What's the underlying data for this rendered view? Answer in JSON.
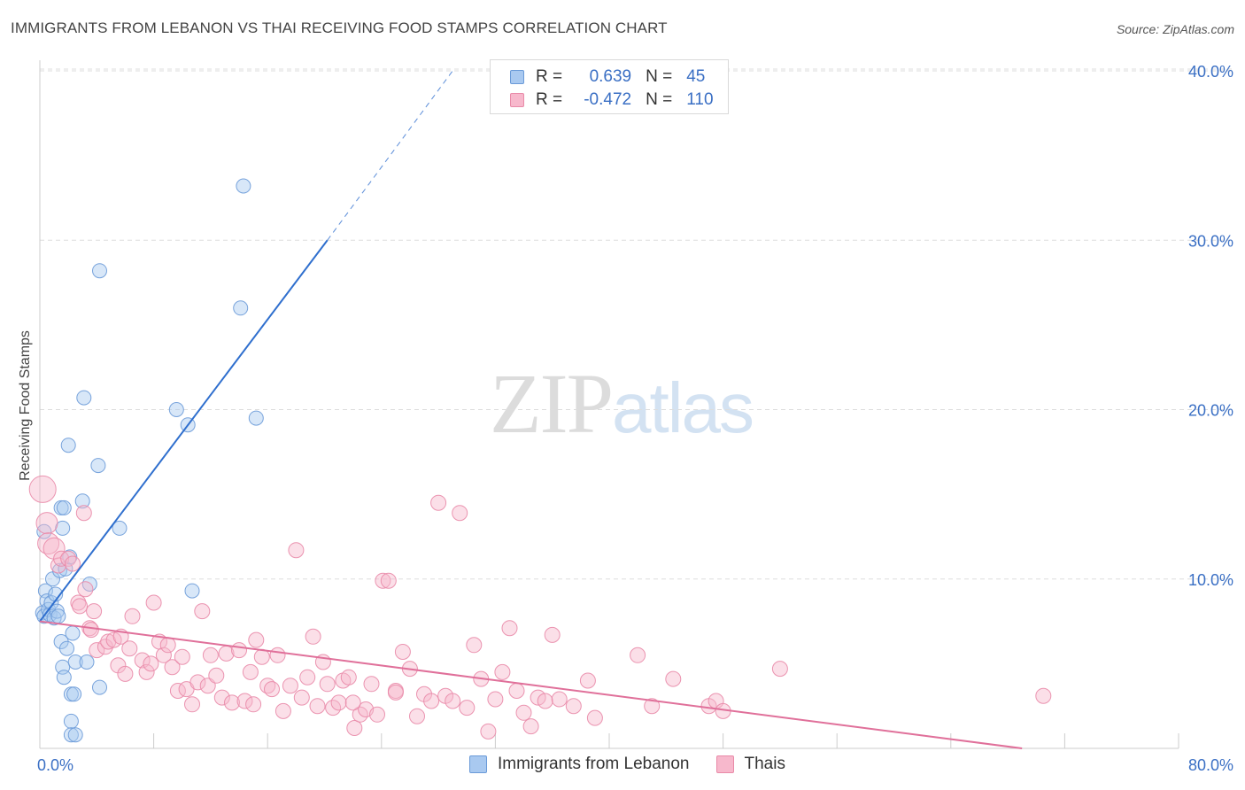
{
  "title": "IMMIGRANTS FROM LEBANON VS THAI RECEIVING FOOD STAMPS CORRELATION CHART",
  "source": "Source: ZipAtlas.com",
  "watermark": {
    "part1": "ZIP",
    "part2": "atlas"
  },
  "legend": {
    "rows": [
      {
        "r_label": "R =",
        "r_value": "0.639",
        "n_label": "N =",
        "n_value": "45",
        "color": "#a9c9f0",
        "border": "#6a9ad8"
      },
      {
        "r_label": "R =",
        "r_value": "-0.472",
        "n_label": "N =",
        "n_value": "110",
        "color": "#f7b8cc",
        "border": "#e98aa8"
      }
    ]
  },
  "bottom_legend": [
    {
      "label": "Immigrants from Lebanon",
      "color": "#a9c9f0",
      "border": "#6a9ad8"
    },
    {
      "label": "Thais",
      "color": "#f7b8cc",
      "border": "#e98aa8"
    }
  ],
  "chart_data": {
    "type": "scatter",
    "title": "IMMIGRANTS FROM LEBANON VS THAI RECEIVING FOOD STAMPS CORRELATION CHART",
    "xlabel": "",
    "ylabel": "Receiving Food Stamps",
    "xlim": [
      0,
      80
    ],
    "ylim": [
      0,
      40
    ],
    "x_tick_labels": [
      "0.0%",
      "80.0%"
    ],
    "y_ticks": [
      10,
      20,
      30,
      40
    ],
    "y_tick_labels": [
      "10.0%",
      "20.0%",
      "30.0%",
      "40.0%"
    ],
    "grid": true,
    "series": [
      {
        "name": "Immigrants from Lebanon",
        "color": "#a9c9f0",
        "stroke": "#6a9ad8",
        "trend_color": "#2f6fce",
        "trend": {
          "x0": 0,
          "y0": 7.5,
          "x1": 20.2,
          "y1": 30.0,
          "x_dash_end": 29.0,
          "y_dash_end": 40.0
        },
        "points": [
          [
            0.2,
            8.0
          ],
          [
            0.3,
            7.8
          ],
          [
            0.4,
            9.3
          ],
          [
            0.5,
            8.7
          ],
          [
            0.6,
            8.2
          ],
          [
            0.7,
            7.9
          ],
          [
            0.8,
            8.6
          ],
          [
            0.9,
            10.0
          ],
          [
            1.0,
            7.7
          ],
          [
            1.1,
            9.1
          ],
          [
            1.2,
            8.1
          ],
          [
            1.3,
            7.8
          ],
          [
            1.4,
            10.5
          ],
          [
            1.5,
            14.2
          ],
          [
            1.6,
            13.0
          ],
          [
            1.7,
            14.2
          ],
          [
            1.5,
            6.3
          ],
          [
            1.6,
            4.8
          ],
          [
            1.8,
            10.6
          ],
          [
            1.9,
            5.9
          ],
          [
            2.0,
            17.9
          ],
          [
            2.1,
            11.3
          ],
          [
            2.2,
            1.6
          ],
          [
            2.2,
            3.2
          ],
          [
            2.3,
            6.8
          ],
          [
            2.4,
            3.2
          ],
          [
            2.5,
            5.1
          ],
          [
            2.2,
            0.8
          ],
          [
            2.5,
            0.8
          ],
          [
            3.1,
            20.7
          ],
          [
            3.0,
            14.6
          ],
          [
            3.3,
            5.1
          ],
          [
            3.5,
            9.7
          ],
          [
            4.1,
            16.7
          ],
          [
            4.2,
            3.6
          ],
          [
            4.2,
            28.2
          ],
          [
            5.6,
            13.0
          ],
          [
            9.6,
            20.0
          ],
          [
            10.4,
            19.1
          ],
          [
            10.7,
            9.3
          ],
          [
            14.1,
            26.0
          ],
          [
            14.3,
            33.2
          ],
          [
            15.2,
            19.5
          ],
          [
            0.3,
            12.8
          ],
          [
            1.7,
            4.2
          ]
        ]
      },
      {
        "name": "Thais",
        "color": "#f7b8cc",
        "stroke": "#e98aa8",
        "trend_color": "#e0709a",
        "trend": {
          "x0": 0,
          "y0": 7.5,
          "x1": 69.0,
          "y1": 0.0
        },
        "points": [
          [
            0.2,
            15.3
          ],
          [
            0.5,
            13.3
          ],
          [
            0.6,
            12.1
          ],
          [
            1.0,
            11.8
          ],
          [
            1.3,
            10.8
          ],
          [
            1.5,
            11.2
          ],
          [
            2.0,
            11.2
          ],
          [
            2.3,
            10.9
          ],
          [
            2.7,
            8.6
          ],
          [
            2.8,
            8.4
          ],
          [
            3.1,
            13.9
          ],
          [
            3.5,
            7.1
          ],
          [
            3.8,
            8.1
          ],
          [
            3.6,
            7.0
          ],
          [
            4.0,
            5.8
          ],
          [
            4.6,
            6.0
          ],
          [
            4.8,
            6.3
          ],
          [
            5.2,
            6.4
          ],
          [
            5.5,
            4.9
          ],
          [
            5.7,
            6.6
          ],
          [
            6.0,
            4.4
          ],
          [
            6.3,
            5.9
          ],
          [
            6.5,
            7.8
          ],
          [
            7.2,
            5.2
          ],
          [
            7.5,
            4.5
          ],
          [
            7.8,
            5.0
          ],
          [
            8.0,
            8.6
          ],
          [
            8.4,
            6.3
          ],
          [
            8.7,
            5.5
          ],
          [
            9.0,
            6.1
          ],
          [
            9.3,
            4.8
          ],
          [
            9.7,
            3.4
          ],
          [
            10.0,
            5.4
          ],
          [
            10.3,
            3.5
          ],
          [
            10.7,
            2.6
          ],
          [
            11.1,
            3.9
          ],
          [
            11.4,
            8.1
          ],
          [
            11.8,
            3.7
          ],
          [
            12.0,
            5.5
          ],
          [
            12.4,
            4.3
          ],
          [
            12.8,
            3.0
          ],
          [
            13.1,
            5.6
          ],
          [
            13.5,
            2.7
          ],
          [
            14.0,
            5.8
          ],
          [
            14.4,
            2.8
          ],
          [
            14.8,
            4.5
          ],
          [
            15.2,
            6.4
          ],
          [
            15.6,
            5.4
          ],
          [
            16.0,
            3.7
          ],
          [
            16.3,
            3.5
          ],
          [
            16.7,
            5.5
          ],
          [
            17.1,
            2.2
          ],
          [
            17.6,
            3.7
          ],
          [
            18.0,
            11.7
          ],
          [
            18.4,
            3.0
          ],
          [
            18.8,
            4.2
          ],
          [
            19.2,
            6.6
          ],
          [
            19.5,
            2.5
          ],
          [
            19.9,
            5.1
          ],
          [
            20.2,
            3.8
          ],
          [
            20.6,
            2.4
          ],
          [
            21.0,
            2.7
          ],
          [
            21.3,
            4.0
          ],
          [
            21.7,
            4.2
          ],
          [
            22.1,
            1.2
          ],
          [
            22.5,
            2.0
          ],
          [
            22.9,
            2.3
          ],
          [
            23.3,
            3.8
          ],
          [
            23.7,
            2.0
          ],
          [
            24.1,
            9.9
          ],
          [
            24.5,
            9.9
          ],
          [
            25.0,
            3.4
          ],
          [
            25.5,
            5.7
          ],
          [
            26.0,
            4.7
          ],
          [
            26.5,
            1.9
          ],
          [
            27.0,
            3.2
          ],
          [
            27.5,
            2.8
          ],
          [
            28.0,
            14.5
          ],
          [
            28.5,
            3.1
          ],
          [
            29.0,
            2.8
          ],
          [
            29.5,
            13.9
          ],
          [
            30.0,
            2.4
          ],
          [
            30.5,
            6.1
          ],
          [
            31.0,
            4.1
          ],
          [
            31.5,
            1.0
          ],
          [
            32.0,
            2.9
          ],
          [
            32.5,
            4.5
          ],
          [
            33.0,
            7.1
          ],
          [
            33.5,
            3.4
          ],
          [
            34.0,
            2.1
          ],
          [
            34.5,
            1.3
          ],
          [
            35.0,
            3.0
          ],
          [
            35.5,
            2.8
          ],
          [
            36.0,
            6.7
          ],
          [
            36.5,
            2.9
          ],
          [
            37.5,
            2.5
          ],
          [
            38.5,
            4.0
          ],
          [
            39.0,
            1.8
          ],
          [
            42.0,
            5.5
          ],
          [
            43.0,
            2.5
          ],
          [
            44.5,
            4.1
          ],
          [
            47.0,
            2.5
          ],
          [
            47.5,
            2.8
          ],
          [
            48.0,
            2.2
          ],
          [
            52.0,
            4.7
          ],
          [
            70.5,
            3.1
          ],
          [
            15.0,
            2.6
          ],
          [
            22.0,
            2.7
          ],
          [
            25.0,
            3.3
          ],
          [
            3.2,
            9.4
          ]
        ]
      }
    ]
  }
}
